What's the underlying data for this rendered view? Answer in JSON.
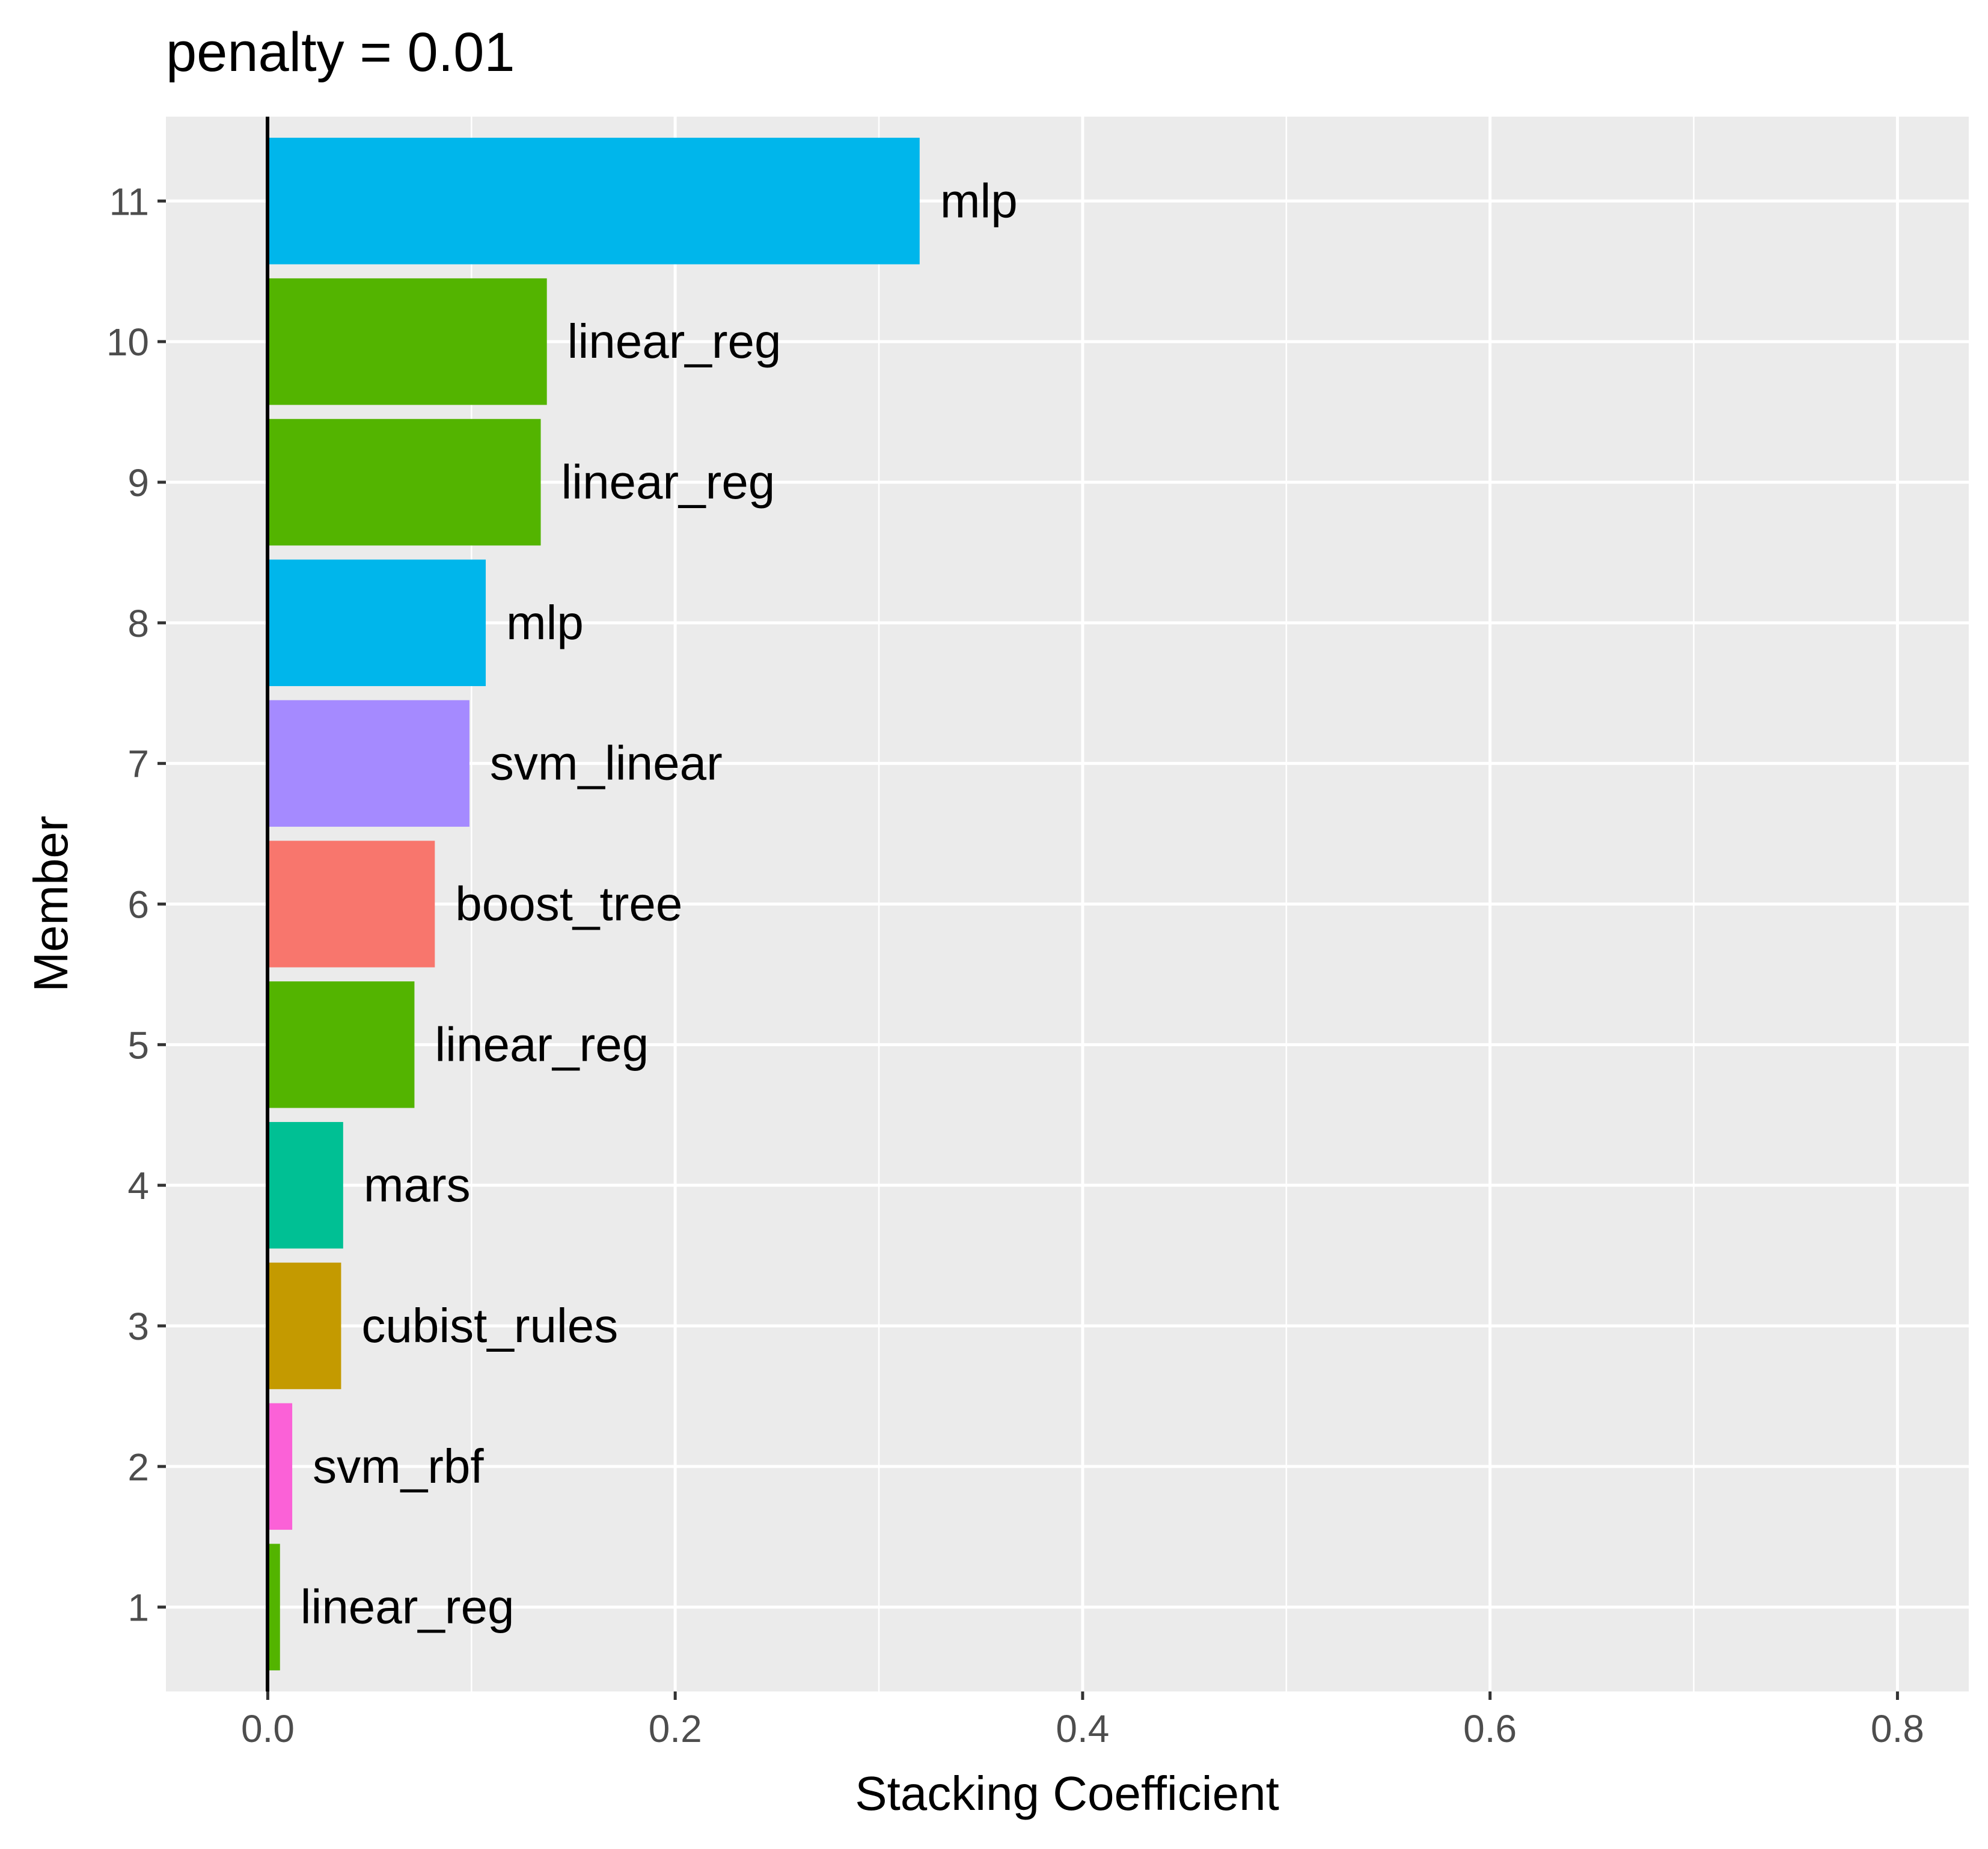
{
  "chart_data": {
    "type": "bar",
    "orientation": "horizontal",
    "title": "penalty = 0.01",
    "xlabel": "Stacking Coefficient",
    "ylabel": "Member",
    "xlim": [
      -0.05,
      0.835
    ],
    "xticks": [
      "0.0",
      "0.2",
      "0.4",
      "0.6",
      "0.8"
    ],
    "categories": [
      "1",
      "2",
      "3",
      "4",
      "5",
      "6",
      "7",
      "8",
      "9",
      "10",
      "11"
    ],
    "values": [
      0.006,
      0.012,
      0.036,
      0.037,
      0.072,
      0.082,
      0.099,
      0.107,
      0.134,
      0.137,
      0.32
    ],
    "labels": [
      "linear_reg",
      "svm_rbf",
      "cubist_rules",
      "mars",
      "linear_reg",
      "boost_tree",
      "svm_linear",
      "mlp",
      "linear_reg",
      "linear_reg",
      "mlp"
    ],
    "colors": {
      "linear_reg": "#53B400",
      "svm_rbf": "#FB61D7",
      "cubist_rules": "#C49A00",
      "mars": "#00C094",
      "boost_tree": "#F8766D",
      "svm_linear": "#A58AFF",
      "mlp": "#00B6EB"
    },
    "background": "#EBEBEB",
    "grid": true,
    "legend": "none"
  }
}
